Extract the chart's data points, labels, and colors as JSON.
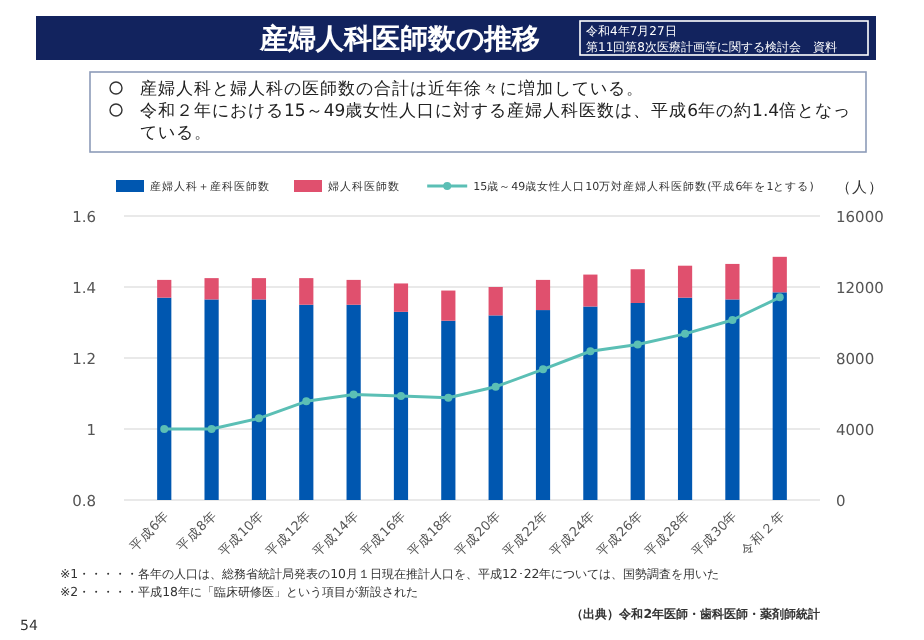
{
  "chart_data": {
    "type": "bar",
    "title": "産婦人科医師数の推移",
    "y2label": "（人）",
    "categories": [
      "平成6年",
      "平成8年",
      "平成10年",
      "平成12年",
      "平成14年",
      "平成16年",
      "平成18年",
      "平成20年",
      "平成22年",
      "平成24年",
      "平成26年",
      "平成28年",
      "平成30年",
      "令和２年"
    ],
    "series": [
      {
        "name": "産婦人科＋産科医師数",
        "axis": "y2",
        "color": "#0057b0",
        "values": [
          11400,
          11300,
          11300,
          11000,
          11000,
          10600,
          10100,
          10400,
          10700,
          10900,
          11100,
          11400,
          11300,
          11700
        ]
      },
      {
        "name": "婦人科医師数",
        "axis": "y2",
        "color": "#e0506e",
        "values": [
          1000,
          1200,
          1200,
          1500,
          1400,
          1600,
          1700,
          1600,
          1700,
          1800,
          1900,
          1800,
          2000,
          2000
        ]
      },
      {
        "name": "15歳～49歳女性人口10万対産婦人科医師数(平成6年を1とする)",
        "type": "line",
        "color": "#5bbfb5",
        "marker": "circle",
        "values": [
          1.0,
          1.0,
          1.03,
          1.078,
          1.097,
          1.093,
          1.088,
          1.119,
          1.168,
          1.219,
          1.238,
          1.268,
          1.307,
          1.371
        ]
      }
    ],
    "stacked": true,
    "ylim": [
      0.8,
      1.6
    ],
    "yticks": [
      0.8,
      1,
      1.2,
      1.4,
      1.6
    ],
    "y2lim": [
      0,
      16000
    ],
    "y2ticks": [
      0,
      4000,
      8000,
      12000,
      16000
    ],
    "grid": "y",
    "legend": "top",
    "annotations": [
      "令和4年7月27日",
      "第11回第8次医療計画等に関する検討会　資料",
      "産婦人科と婦人科の医師数の合計は近年徐々に増加している。",
      "令和２年における15～49歳女性人口に対する産婦人科医数は、平成6年の約1.4倍となっている。",
      "※1・・・・・各年の人口は、総務省統計局発表の10月１日現在推計人口を、平成12･22年については、国勢調査を用いた",
      "※2・・・・・平成18年に「臨床研修医」という項目が新設された",
      "（出典）令和2年医師・歯科医師・薬剤師統計",
      "54"
    ]
  }
}
